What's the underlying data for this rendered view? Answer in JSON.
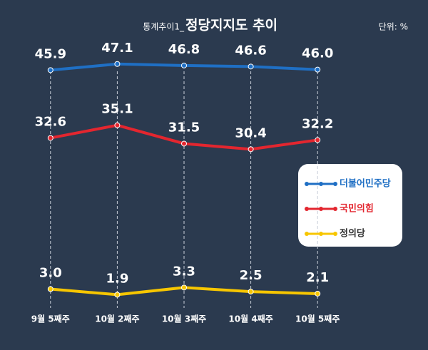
{
  "chart_data": {
    "type": "line",
    "title_prefix": "통계추이1_",
    "title": "정당지지도 추이",
    "unit": "단위: %",
    "categories": [
      "9월 5째주",
      "10월 2째주",
      "10월 3째주",
      "10월 4째주",
      "10월 5째주"
    ],
    "ylim": [
      0,
      50
    ],
    "series": [
      {
        "name": "더불어민주당",
        "color": "#1f6fc4",
        "values": [
          45.9,
          47.1,
          46.8,
          46.6,
          46.0
        ],
        "value_labels": [
          "45.9",
          "47.1",
          "46.8",
          "46.6",
          "46.0"
        ]
      },
      {
        "name": "국민의힘",
        "color": "#e3262f",
        "values": [
          32.6,
          35.1,
          31.5,
          30.4,
          32.2
        ],
        "value_labels": [
          "32.6",
          "35.1",
          "31.5",
          "30.4",
          "32.2"
        ]
      },
      {
        "name": "정의당",
        "color": "#f7c600",
        "values": [
          3.0,
          1.9,
          3.3,
          2.5,
          2.1
        ],
        "value_labels": [
          "3.0",
          "1.9",
          "3.3",
          "2.5",
          "2.1"
        ]
      }
    ]
  }
}
